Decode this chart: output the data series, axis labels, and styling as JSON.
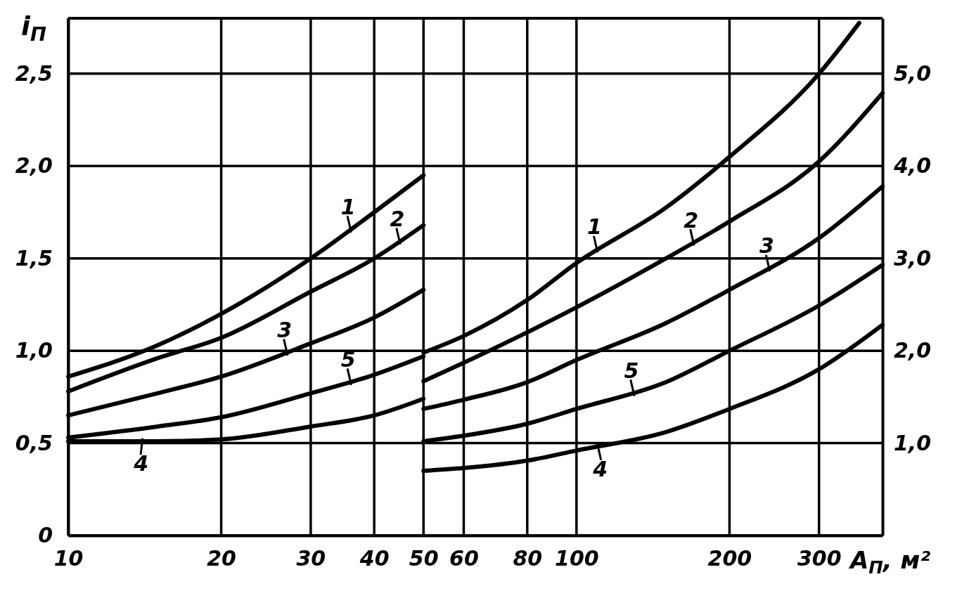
{
  "chart_data": {
    "type": "line",
    "xlabel": "A$_{П}$, м²",
    "ylabel": "i$_{П}$",
    "log": "x",
    "grid": true,
    "xlim": [
      10,
      400
    ],
    "xticks": [
      10,
      20,
      30,
      40,
      50,
      60,
      80,
      100,
      200,
      300
    ],
    "ylim": [
      0,
      2.8
    ],
    "yticks": [
      0,
      {
        "value": 0.5,
        "label": "0,5"
      },
      {
        "value": 1,
        "label": "1,0"
      },
      {
        "value": 1.5,
        "label": "1,5"
      },
      {
        "value": 2,
        "label": "2,0"
      },
      {
        "value": 2.5,
        "label": "2,5"
      }
    ],
    "y2lim": [
      0,
      5.6
    ],
    "y2ticks": [
      {
        "value": 1,
        "label": "1,0"
      },
      {
        "value": 2,
        "label": "2,0"
      },
      {
        "value": 3,
        "label": "3,0"
      },
      {
        "value": 4,
        "label": "4,0"
      },
      {
        "value": 5,
        "label": "5,0"
      }
    ],
    "series": [
      {
        "name": "1",
        "color": "#000000",
        "x": [
          10,
          15,
          20,
          30,
          40,
          50
        ],
        "values": [
          0.86,
          1.03,
          1.2,
          1.5,
          1.75,
          1.95
        ]
      },
      {
        "name": "2",
        "color": "#000000",
        "x": [
          10,
          15,
          20,
          30,
          40,
          50
        ],
        "values": [
          0.78,
          0.96,
          1.07,
          1.32,
          1.5,
          1.68
        ]
      },
      {
        "name": "3",
        "color": "#000000",
        "x": [
          10,
          15,
          20,
          30,
          40,
          50
        ],
        "values": [
          0.65,
          0.77,
          0.86,
          1.04,
          1.18,
          1.33
        ]
      },
      {
        "name": "4",
        "color": "#000000",
        "x": [
          10,
          15,
          20,
          30,
          40,
          50
        ],
        "values": [
          0.51,
          0.51,
          0.52,
          0.59,
          0.65,
          0.74
        ]
      },
      {
        "name": "5",
        "color": "#000000",
        "x": [
          10,
          15,
          20,
          30,
          40,
          50
        ],
        "values": [
          0.53,
          0.59,
          0.64,
          0.77,
          0.87,
          0.97
        ]
      },
      {
        "name": "1",
        "color": "#000000",
        "axis": "y2",
        "x": [
          50,
          60,
          80,
          100,
          150,
          200,
          300,
          360
        ],
        "values": [
          1.98,
          2.16,
          2.55,
          2.95,
          3.55,
          4.1,
          5.0,
          5.55
        ]
      },
      {
        "name": "2",
        "color": "#000000",
        "axis": "y2",
        "x": [
          50,
          60,
          80,
          100,
          150,
          200,
          300,
          400
        ],
        "values": [
          1.67,
          1.87,
          2.2,
          2.47,
          3.0,
          3.4,
          4.05,
          4.79
        ]
      },
      {
        "name": "3",
        "color": "#000000",
        "axis": "y2",
        "x": [
          50,
          60,
          80,
          100,
          150,
          200,
          300,
          400
        ],
        "values": [
          1.37,
          1.47,
          1.66,
          1.9,
          2.3,
          2.66,
          3.22,
          3.78
        ]
      },
      {
        "name": "4",
        "color": "#000000",
        "axis": "y2",
        "x": [
          50,
          60,
          80,
          100,
          150,
          200,
          300,
          400
        ],
        "values": [
          0.7,
          0.73,
          0.81,
          0.92,
          1.12,
          1.37,
          1.8,
          2.28
        ]
      },
      {
        "name": "5",
        "color": "#000000",
        "axis": "y2",
        "x": [
          50,
          60,
          80,
          100,
          150,
          200,
          300,
          400
        ],
        "values": [
          1.02,
          1.08,
          1.21,
          1.37,
          1.66,
          2.0,
          2.49,
          2.93
        ]
      }
    ]
  }
}
